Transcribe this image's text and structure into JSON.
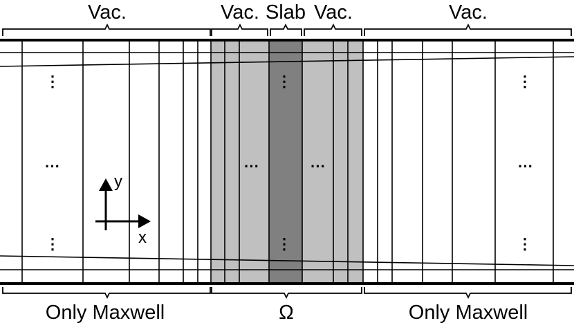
{
  "top_labels": {
    "vac_left": "Vac.",
    "vac_mid_left": "Vac.",
    "slab": "Slab",
    "vac_mid_right": "Vac.",
    "vac_right": "Vac."
  },
  "bottom_labels": {
    "left": "Only Maxwell",
    "center": "Ω",
    "right": "Only Maxwell"
  },
  "axes": {
    "y": "y",
    "x": "x"
  },
  "ellipsis": {
    "horizontal": "···",
    "vertical": "⋮"
  },
  "colors": {
    "vacuum_region": "#c0c0c0",
    "slab_region": "#808080",
    "lines": "#000000"
  }
}
